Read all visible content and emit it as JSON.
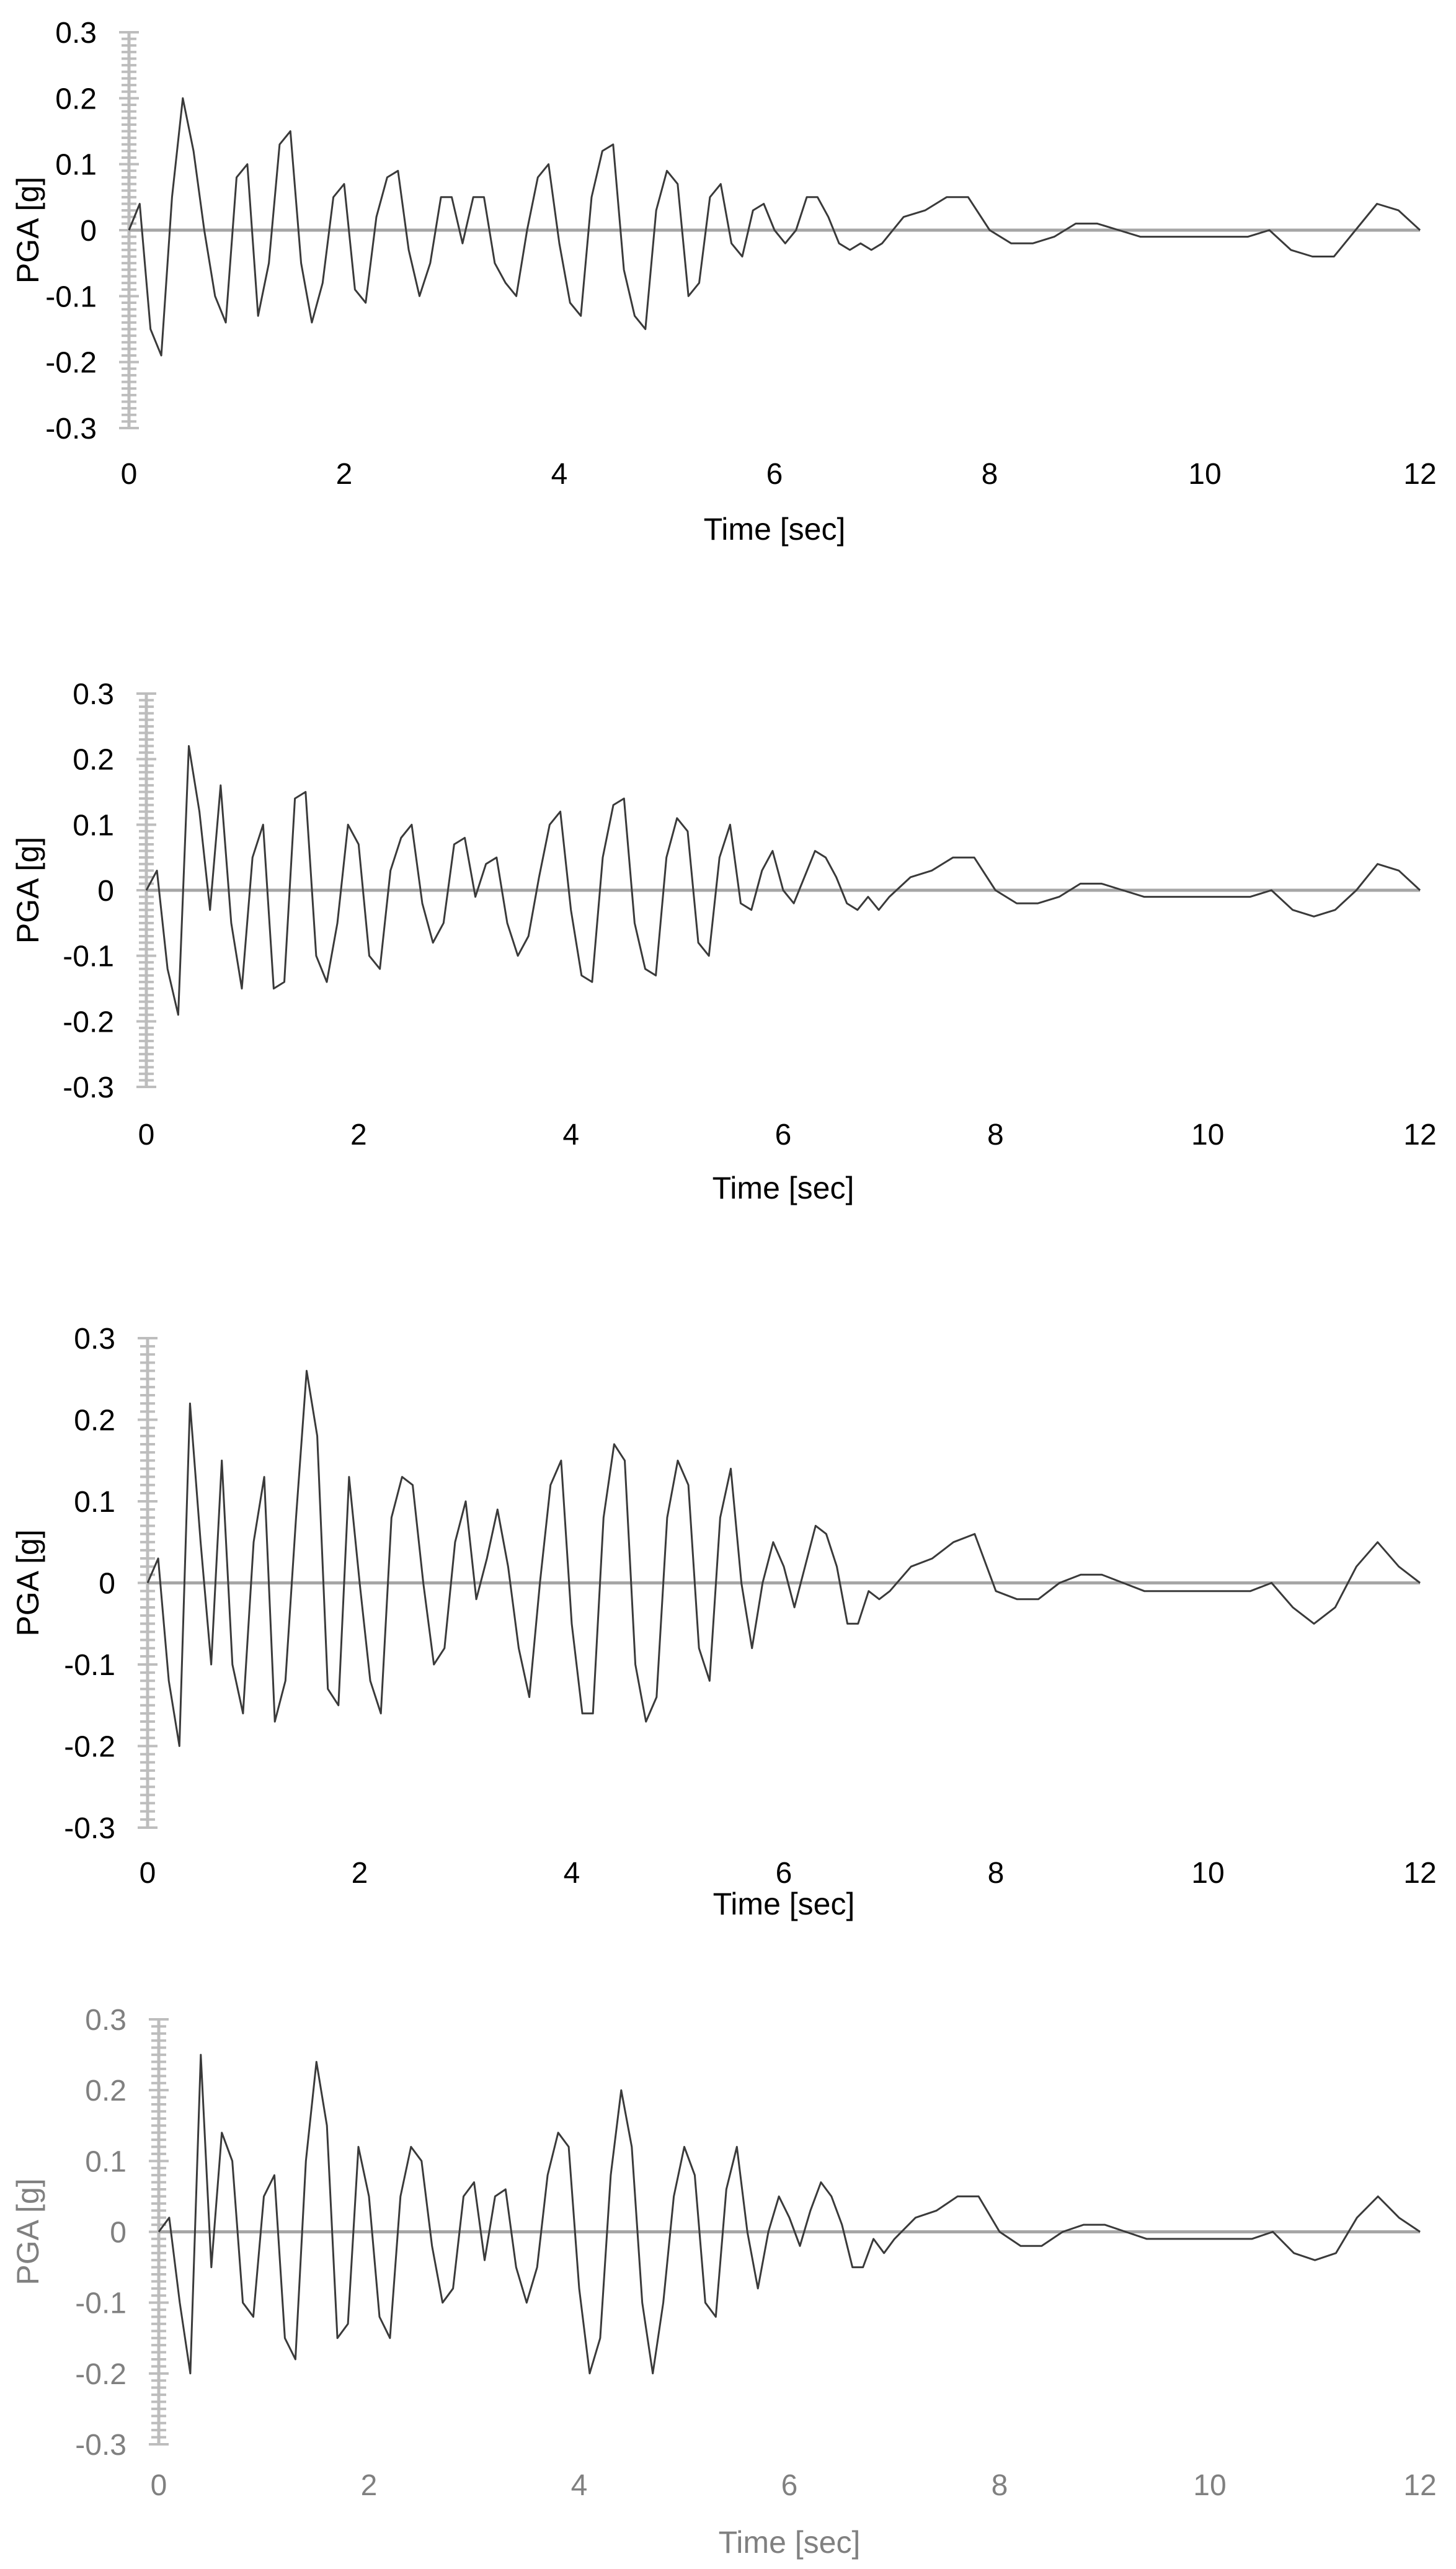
{
  "chart_data": [
    {
      "type": "line",
      "xlabel": "Time [sec]",
      "ylabel": "PGA [g]",
      "xlim": [
        0,
        12
      ],
      "ylim": [
        -0.3,
        0.3
      ],
      "x_ticks": [
        "0",
        "2",
        "4",
        "6",
        "8",
        "10",
        "12"
      ],
      "y_ticks": [
        "0.3",
        "0.2",
        "0.1",
        "0",
        "-0.1",
        "-0.2",
        "-0.3"
      ],
      "grid": false,
      "text_color": "#000000",
      "line_color": "#3a3a3a",
      "series": [
        {
          "x": [
            0,
            0.1,
            0.2,
            0.3,
            0.4,
            0.5,
            0.6,
            0.7,
            0.8,
            0.9,
            1.0,
            1.1,
            1.2,
            1.3,
            1.4,
            1.5,
            1.6,
            1.7,
            1.8,
            1.9,
            2.0,
            2.1,
            2.2,
            2.3,
            2.4,
            2.5,
            2.6,
            2.7,
            2.8,
            2.9,
            3.0,
            3.1,
            3.2,
            3.3,
            3.4,
            3.5,
            3.6,
            3.7,
            3.8,
            3.9,
            4.0,
            4.1,
            4.2,
            4.3,
            4.4,
            4.5,
            4.6,
            4.7,
            4.8,
            4.9,
            5.0,
            5.1,
            5.2,
            5.3,
            5.4,
            5.5,
            5.6,
            5.7,
            5.8,
            5.9,
            6.0,
            6.1,
            6.2,
            6.3,
            6.4,
            6.5,
            6.6,
            6.7,
            6.8,
            6.9,
            7.0,
            7.2,
            7.4,
            7.6,
            7.8,
            8.0,
            8.2,
            8.4,
            8.6,
            8.8,
            9.0,
            9.2,
            9.4,
            9.6,
            9.8,
            10.0,
            10.2,
            10.4,
            10.6,
            10.8,
            11.0,
            11.2,
            11.4,
            11.6,
            11.8,
            12.0
          ],
          "values": [
            0,
            0.04,
            -0.15,
            -0.19,
            0.05,
            0.2,
            0.12,
            0.0,
            -0.1,
            -0.14,
            0.08,
            0.1,
            -0.13,
            -0.05,
            0.13,
            0.15,
            -0.05,
            -0.14,
            -0.08,
            0.05,
            0.07,
            -0.09,
            -0.11,
            0.02,
            0.08,
            0.09,
            -0.03,
            -0.1,
            -0.05,
            0.05,
            0.05,
            -0.02,
            0.05,
            0.05,
            -0.05,
            -0.08,
            -0.1,
            0.0,
            0.08,
            0.1,
            -0.02,
            -0.11,
            -0.13,
            0.05,
            0.12,
            0.13,
            -0.06,
            -0.13,
            -0.15,
            0.03,
            0.09,
            0.07,
            -0.1,
            -0.08,
            0.05,
            0.07,
            -0.02,
            -0.04,
            0.03,
            0.04,
            0.0,
            -0.02,
            0.0,
            0.05,
            0.05,
            0.02,
            -0.02,
            -0.03,
            -0.02,
            -0.03,
            -0.02,
            0.02,
            0.03,
            0.05,
            0.05,
            0.0,
            -0.02,
            -0.02,
            -0.01,
            0.01,
            0.01,
            0.0,
            -0.01,
            -0.01,
            -0.01,
            -0.01,
            -0.01,
            -0.01,
            0.0,
            -0.03,
            -0.04,
            -0.04,
            0.0,
            0.04,
            0.03,
            0.0
          ]
        }
      ]
    },
    {
      "type": "line",
      "xlabel": "Time [sec]",
      "ylabel": "PGA [g]",
      "xlim": [
        0,
        12
      ],
      "ylim": [
        -0.3,
        0.3
      ],
      "x_ticks": [
        "0",
        "2",
        "4",
        "6",
        "8",
        "10",
        "12"
      ],
      "y_ticks": [
        "0.3",
        "0.2",
        "0.1",
        "0",
        "-0.1",
        "-0.2",
        "-0.3"
      ],
      "grid": false,
      "text_color": "#000000",
      "line_color": "#3a3a3a",
      "series": [
        {
          "x": [
            0,
            0.1,
            0.2,
            0.3,
            0.4,
            0.5,
            0.6,
            0.7,
            0.8,
            0.9,
            1.0,
            1.1,
            1.2,
            1.3,
            1.4,
            1.5,
            1.6,
            1.7,
            1.8,
            1.9,
            2.0,
            2.1,
            2.2,
            2.3,
            2.4,
            2.5,
            2.6,
            2.7,
            2.8,
            2.9,
            3.0,
            3.1,
            3.2,
            3.3,
            3.4,
            3.5,
            3.6,
            3.7,
            3.8,
            3.9,
            4.0,
            4.1,
            4.2,
            4.3,
            4.4,
            4.5,
            4.6,
            4.7,
            4.8,
            4.9,
            5.0,
            5.1,
            5.2,
            5.3,
            5.4,
            5.5,
            5.6,
            5.7,
            5.8,
            5.9,
            6.0,
            6.1,
            6.2,
            6.3,
            6.4,
            6.5,
            6.6,
            6.7,
            6.8,
            6.9,
            7.0,
            7.2,
            7.4,
            7.6,
            7.8,
            8.0,
            8.2,
            8.4,
            8.6,
            8.8,
            9.0,
            9.2,
            9.4,
            9.6,
            9.8,
            10.0,
            10.2,
            10.4,
            10.6,
            10.8,
            11.0,
            11.2,
            11.4,
            11.6,
            11.8,
            12.0
          ],
          "values": [
            0,
            0.03,
            -0.12,
            -0.19,
            0.22,
            0.12,
            -0.03,
            0.16,
            -0.05,
            -0.15,
            0.05,
            0.1,
            -0.15,
            -0.14,
            0.14,
            0.15,
            -0.1,
            -0.14,
            -0.05,
            0.1,
            0.07,
            -0.1,
            -0.12,
            0.03,
            0.08,
            0.1,
            -0.02,
            -0.08,
            -0.05,
            0.07,
            0.08,
            -0.01,
            0.04,
            0.05,
            -0.05,
            -0.1,
            -0.07,
            0.02,
            0.1,
            0.12,
            -0.03,
            -0.13,
            -0.14,
            0.05,
            0.13,
            0.14,
            -0.05,
            -0.12,
            -0.13,
            0.05,
            0.11,
            0.09,
            -0.08,
            -0.1,
            0.05,
            0.1,
            -0.02,
            -0.03,
            0.03,
            0.06,
            0.0,
            -0.02,
            0.02,
            0.06,
            0.05,
            0.02,
            -0.02,
            -0.03,
            -0.01,
            -0.03,
            -0.01,
            0.02,
            0.03,
            0.05,
            0.05,
            0.0,
            -0.02,
            -0.02,
            -0.01,
            0.01,
            0.01,
            0.0,
            -0.01,
            -0.01,
            -0.01,
            -0.01,
            -0.01,
            -0.01,
            0.0,
            -0.03,
            -0.04,
            -0.03,
            0.0,
            0.04,
            0.03,
            0.0
          ]
        }
      ]
    },
    {
      "type": "line",
      "xlabel": "Time [sec]",
      "ylabel": "PGA [g]",
      "xlim": [
        0,
        12
      ],
      "ylim": [
        -0.3,
        0.3
      ],
      "x_ticks": [
        "0",
        "2",
        "4",
        "6",
        "8",
        "10",
        "12"
      ],
      "y_ticks": [
        "0.3",
        "0.2",
        "0.1",
        "0",
        "-0.1",
        "-0.2",
        "-0.3"
      ],
      "grid": false,
      "text_color": "#000000",
      "line_color": "#3a3a3a",
      "series": [
        {
          "x": [
            0,
            0.1,
            0.2,
            0.3,
            0.4,
            0.5,
            0.6,
            0.7,
            0.8,
            0.9,
            1.0,
            1.1,
            1.2,
            1.3,
            1.4,
            1.5,
            1.6,
            1.7,
            1.8,
            1.9,
            2.0,
            2.1,
            2.2,
            2.3,
            2.4,
            2.5,
            2.6,
            2.7,
            2.8,
            2.9,
            3.0,
            3.1,
            3.2,
            3.3,
            3.4,
            3.5,
            3.6,
            3.7,
            3.8,
            3.9,
            4.0,
            4.1,
            4.2,
            4.3,
            4.4,
            4.5,
            4.6,
            4.7,
            4.8,
            4.9,
            5.0,
            5.1,
            5.2,
            5.3,
            5.4,
            5.5,
            5.6,
            5.7,
            5.8,
            5.9,
            6.0,
            6.1,
            6.2,
            6.3,
            6.4,
            6.5,
            6.6,
            6.7,
            6.8,
            6.9,
            7.0,
            7.2,
            7.4,
            7.6,
            7.8,
            8.0,
            8.2,
            8.4,
            8.6,
            8.8,
            9.0,
            9.2,
            9.4,
            9.6,
            9.8,
            10.0,
            10.2,
            10.4,
            10.6,
            10.8,
            11.0,
            11.2,
            11.4,
            11.6,
            11.8,
            12.0
          ],
          "values": [
            0,
            0.03,
            -0.12,
            -0.2,
            0.22,
            0.05,
            -0.1,
            0.15,
            -0.1,
            -0.16,
            0.05,
            0.13,
            -0.17,
            -0.12,
            0.08,
            0.26,
            0.18,
            -0.13,
            -0.15,
            0.13,
            0.0,
            -0.12,
            -0.16,
            0.08,
            0.13,
            0.12,
            0.0,
            -0.1,
            -0.08,
            0.05,
            0.1,
            -0.02,
            0.03,
            0.09,
            0.02,
            -0.08,
            -0.14,
            0.0,
            0.12,
            0.15,
            -0.05,
            -0.16,
            -0.16,
            0.08,
            0.17,
            0.15,
            -0.1,
            -0.17,
            -0.14,
            0.08,
            0.15,
            0.12,
            -0.08,
            -0.12,
            0.08,
            0.14,
            0.0,
            -0.08,
            0.0,
            0.05,
            0.02,
            -0.03,
            0.02,
            0.07,
            0.06,
            0.02,
            -0.05,
            -0.05,
            -0.01,
            -0.02,
            -0.01,
            0.02,
            0.03,
            0.05,
            0.06,
            -0.01,
            -0.02,
            -0.02,
            0.0,
            0.01,
            0.01,
            0.0,
            -0.01,
            -0.01,
            -0.01,
            -0.01,
            -0.01,
            -0.01,
            0.0,
            -0.03,
            -0.05,
            -0.03,
            0.02,
            0.05,
            0.02,
            0.0
          ]
        }
      ]
    },
    {
      "type": "line",
      "xlabel": "Time [sec]",
      "ylabel": "PGA [g]",
      "xlim": [
        0,
        12
      ],
      "ylim": [
        -0.3,
        0.3
      ],
      "x_ticks": [
        "0",
        "2",
        "4",
        "6",
        "8",
        "10",
        "12"
      ],
      "y_ticks": [
        "0.3",
        "0.2",
        "0.1",
        "0",
        "-0.1",
        "-0.2",
        "-0.3"
      ],
      "grid": false,
      "text_color": "#808080",
      "line_color": "#3a3a3a",
      "series": [
        {
          "x": [
            0,
            0.1,
            0.2,
            0.3,
            0.4,
            0.5,
            0.6,
            0.7,
            0.8,
            0.9,
            1.0,
            1.1,
            1.2,
            1.3,
            1.4,
            1.5,
            1.6,
            1.7,
            1.8,
            1.9,
            2.0,
            2.1,
            2.2,
            2.3,
            2.4,
            2.5,
            2.6,
            2.7,
            2.8,
            2.9,
            3.0,
            3.1,
            3.2,
            3.3,
            3.4,
            3.5,
            3.6,
            3.7,
            3.8,
            3.9,
            4.0,
            4.1,
            4.2,
            4.3,
            4.4,
            4.5,
            4.6,
            4.7,
            4.8,
            4.9,
            5.0,
            5.1,
            5.2,
            5.3,
            5.4,
            5.5,
            5.6,
            5.7,
            5.8,
            5.9,
            6.0,
            6.1,
            6.2,
            6.3,
            6.4,
            6.5,
            6.6,
            6.7,
            6.8,
            6.9,
            7.0,
            7.2,
            7.4,
            7.6,
            7.8,
            8.0,
            8.2,
            8.4,
            8.6,
            8.8,
            9.0,
            9.2,
            9.4,
            9.6,
            9.8,
            10.0,
            10.2,
            10.4,
            10.6,
            10.8,
            11.0,
            11.2,
            11.4,
            11.6,
            11.8,
            12.0
          ],
          "values": [
            0,
            0.02,
            -0.1,
            -0.2,
            0.25,
            -0.05,
            0.14,
            0.1,
            -0.1,
            -0.12,
            0.05,
            0.08,
            -0.15,
            -0.18,
            0.1,
            0.24,
            0.15,
            -0.15,
            -0.13,
            0.12,
            0.05,
            -0.12,
            -0.15,
            0.05,
            0.12,
            0.1,
            -0.02,
            -0.1,
            -0.08,
            0.05,
            0.07,
            -0.04,
            0.05,
            0.06,
            -0.05,
            -0.1,
            -0.05,
            0.08,
            0.14,
            0.12,
            -0.08,
            -0.2,
            -0.15,
            0.08,
            0.2,
            0.12,
            -0.1,
            -0.2,
            -0.1,
            0.05,
            0.12,
            0.08,
            -0.1,
            -0.12,
            0.06,
            0.12,
            0.0,
            -0.08,
            0.0,
            0.05,
            0.02,
            -0.02,
            0.03,
            0.07,
            0.05,
            0.01,
            -0.05,
            -0.05,
            -0.01,
            -0.03,
            -0.01,
            0.02,
            0.03,
            0.05,
            0.05,
            0.0,
            -0.02,
            -0.02,
            0.0,
            0.01,
            0.01,
            0.0,
            -0.01,
            -0.01,
            -0.01,
            -0.01,
            -0.01,
            -0.01,
            0.0,
            -0.03,
            -0.04,
            -0.03,
            0.02,
            0.05,
            0.02,
            0.0
          ]
        }
      ]
    }
  ]
}
